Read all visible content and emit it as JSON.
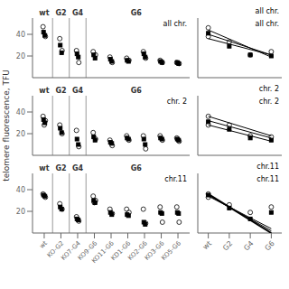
{
  "chart_data": [
    {
      "type": "scatter",
      "title": "all chr.",
      "annotations": [
        "wt",
        "G2",
        "G4",
        "G6"
      ],
      "categories": [
        "wt",
        "KO-G2",
        "KO7-G4",
        "KO9-G6",
        "KO11-G6",
        "KD1-G6",
        "KO2-G6",
        "KO3-G6",
        "KO5-G6"
      ],
      "ylim": [
        0,
        55
      ],
      "yticks": [
        20,
        40
      ],
      "tick_labels": "y",
      "series": [
        {
          "marker": "open circle",
          "color": "black",
          "values": [
            [
              47,
              38
            ],
            [
              36,
              25
            ],
            [
              25,
              14
            ],
            [
              24,
              21
            ],
            [
              19,
              14
            ],
            [
              18,
              16
            ],
            [
              24,
              18
            ],
            [
              16,
              14
            ],
            [
              14,
              13
            ]
          ]
        },
        {
          "marker": "square",
          "color": "black",
          "values": [
            [
              42,
              39
            ],
            [
              30,
              23
            ],
            [
              22,
              19
            ],
            [
              21,
              18
            ],
            [
              17,
              15
            ],
            [
              16,
              15
            ],
            [
              22,
              19
            ],
            [
              15,
              14
            ],
            [
              14,
              13
            ]
          ]
        }
      ]
    },
    {
      "type": "scatter",
      "title": "chr. 2",
      "ylabel": "telomere fluorescence, TFU",
      "annotations": [
        "wt",
        "G2",
        "G4",
        "G6"
      ],
      "categories": [
        "wt",
        "KO-G2",
        "KO7-G4",
        "KO9-G6",
        "KO11-G6",
        "KD1-G6",
        "KO2-G6",
        "KO3-G6",
        "KO5-G6"
      ],
      "ylim": [
        0,
        55
      ],
      "yticks": [
        20,
        40
      ],
      "tick_labels": "y",
      "series": [
        {
          "marker": "open circle",
          "color": "black",
          "values": [
            [
              36,
              32,
              28
            ],
            [
              28,
              20
            ],
            [
              23,
              8
            ],
            [
              21,
              15
            ],
            [
              14,
              9
            ],
            [
              18,
              14
            ],
            [
              18,
              6
            ],
            [
              18,
              14
            ],
            [
              16,
              13
            ]
          ]
        },
        {
          "marker": "square",
          "color": "black",
          "values": [
            [
              33,
              30
            ],
            [
              25,
              21
            ],
            [
              15,
              10
            ],
            [
              17,
              14
            ],
            [
              12,
              11
            ],
            [
              16,
              15
            ],
            [
              15,
              10
            ],
            [
              16,
              15
            ],
            [
              15,
              14
            ]
          ]
        }
      ]
    },
    {
      "type": "scatter",
      "title": "chr.11",
      "annotations": [
        "wt",
        "G2",
        "G4",
        "G6"
      ],
      "categories": [
        "wt",
        "KO-G2",
        "KO7-G4",
        "KO9-G6",
        "KO11-G6",
        "KD1-G6",
        "KO2-G6",
        "KO3-G6",
        "KO5-G6"
      ],
      "ylim": [
        0,
        55
      ],
      "yticks": [
        20,
        40
      ],
      "series": [
        {
          "marker": "open circle",
          "color": "black",
          "values": [
            [
              36,
              33
            ],
            [
              27,
              22
            ],
            [
              15,
              11
            ],
            [
              34,
              30,
              28
            ],
            [
              22,
              18
            ],
            [
              22,
              19
            ],
            [
              22,
              9
            ],
            [
              24,
              10
            ],
            [
              24,
              10
            ]
          ]
        },
        {
          "marker": "square",
          "color": "black",
          "values": [
            [
              35,
              34
            ],
            [
              24,
              22
            ],
            [
              13,
              12
            ],
            [
              30,
              28
            ],
            [
              19,
              17
            ],
            [
              17,
              16
            ],
            [
              10,
              8
            ],
            [
              19,
              18
            ],
            [
              19,
              18
            ]
          ]
        }
      ]
    },
    {
      "type": "scatter",
      "title": "all chr.",
      "categories": [
        "wt",
        "G2",
        "G4",
        "G6"
      ],
      "ylim": [
        0,
        55
      ],
      "yticks": [
        20,
        40
      ],
      "tick_labels": false,
      "series": [
        {
          "type": "line",
          "color": "black",
          "line_style": "solid",
          "values": [
            44,
            null,
            null,
            19
          ]
        },
        {
          "type": "line",
          "color": "black",
          "line_style": "solid",
          "values": [
            40,
            null,
            null,
            21
          ]
        },
        {
          "type": "line",
          "color": "black",
          "line_style": "solid",
          "values": [
            36,
            null,
            null,
            21
          ]
        },
        {
          "type": "scatter",
          "marker": "open circle",
          "color": "black",
          "values": [
            [
              46,
              38
            ],
            [
              33
            ],
            [
              21
            ],
            [
              24
            ]
          ]
        },
        {
          "type": "scatter",
          "marker": "square",
          "color": "black",
          "values": [
            [
              41
            ],
            [
              29
            ],
            [
              21
            ],
            [
              20
            ]
          ]
        }
      ]
    },
    {
      "type": "scatter",
      "title": "chr. 2",
      "categories": [
        "wt",
        "G2",
        "G4",
        "G6"
      ],
      "ylim": [
        0,
        55
      ],
      "yticks": [
        20,
        40
      ],
      "tick_labels": false,
      "series": [
        {
          "type": "line",
          "color": "black",
          "line_style": "solid",
          "values": [
            36,
            null,
            null,
            18
          ]
        },
        {
          "type": "line",
          "color": "black",
          "line_style": "solid",
          "values": [
            32,
            null,
            null,
            16
          ]
        },
        {
          "type": "line",
          "color": "black",
          "line_style": "solid",
          "values": [
            28,
            null,
            null,
            13
          ]
        },
        {
          "type": "scatter",
          "marker": "open circle",
          "color": "black",
          "values": [
            [
              36,
              28
            ],
            [
              28
            ],
            [
              18
            ],
            [
              17
            ]
          ]
        },
        {
          "type": "scatter",
          "marker": "square",
          "color": "black",
          "values": [
            [
              31
            ],
            [
              24
            ],
            [
              16
            ],
            [
              14
            ]
          ]
        }
      ]
    },
    {
      "type": "scatter",
      "title": "chr.11",
      "categories": [
        "wt",
        "G2",
        "G4",
        "G6"
      ],
      "ylim": [
        0,
        55
      ],
      "yticks": [
        20,
        40
      ],
      "tick_labels": "x",
      "series": [
        {
          "type": "line",
          "color": "black",
          "line_style": "thick",
          "values": [
            36,
            null,
            null,
            0
          ]
        },
        {
          "type": "line",
          "color": "black",
          "line_style": "solid",
          "values": [
            35,
            null,
            null,
            2
          ]
        },
        {
          "type": "line",
          "color": "black",
          "line_style": "solid",
          "values": [
            34,
            null,
            null,
            4
          ]
        },
        {
          "type": "scatter",
          "marker": "open circle",
          "color": "black",
          "values": [
            [
              36,
              33
            ],
            [
              26
            ],
            [
              19
            ],
            [
              24
            ]
          ]
        },
        {
          "type": "scatter",
          "marker": "square",
          "color": "black",
          "values": [
            [
              35
            ],
            [
              23
            ],
            [
              13
            ],
            [
              19
            ]
          ]
        }
      ]
    }
  ]
}
